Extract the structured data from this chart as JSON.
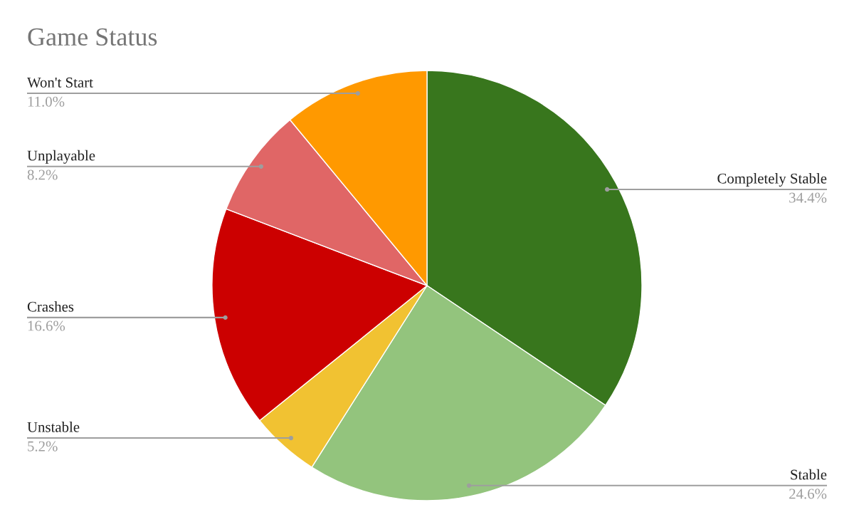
{
  "chart_data": {
    "type": "pie",
    "title": "Game Status",
    "categories": [
      "Completely Stable",
      "Stable",
      "Unstable",
      "Crashes",
      "Unplayable",
      "Won't Start"
    ],
    "values": [
      34.4,
      24.6,
      5.2,
      16.6,
      8.2,
      11.0
    ],
    "value_labels": [
      "34.4%",
      "24.6%",
      "5.2%",
      "16.6%",
      "8.2%",
      "11.0%"
    ],
    "colors": [
      "#38761d",
      "#93c47d",
      "#f1c232",
      "#cc0000",
      "#e06666",
      "#ff9900"
    ],
    "legend": false
  }
}
